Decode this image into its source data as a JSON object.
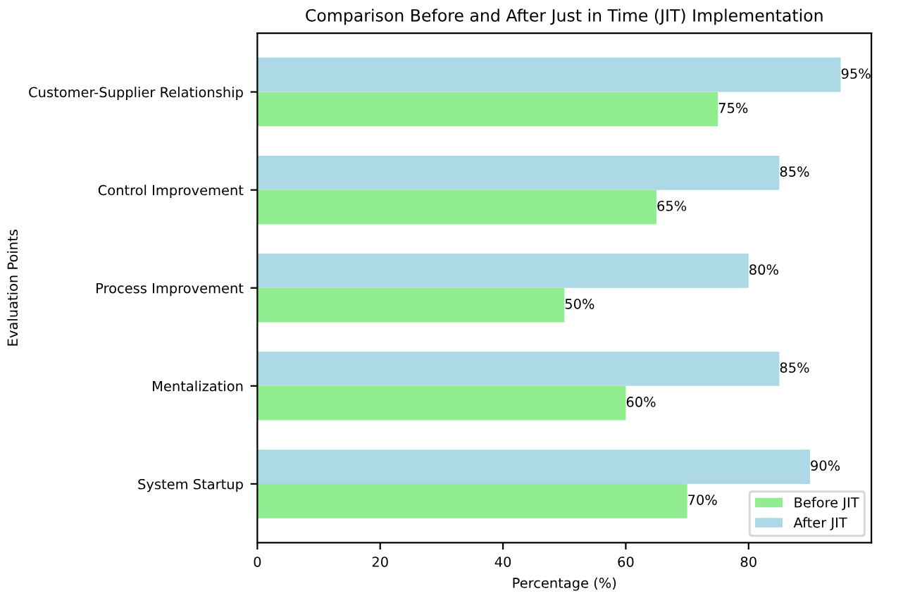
{
  "chart_data": {
    "type": "bar",
    "orientation": "horizontal",
    "title": "Comparison Before and After Just in Time (JIT) Implementation",
    "xlabel": "Percentage (%)",
    "ylabel": "Evaluation Points",
    "categories": [
      "Customer-Supplier Relationship",
      "Control Improvement",
      "Process Improvement",
      "Mentalization",
      "System Startup"
    ],
    "series": [
      {
        "name": "Before JIT",
        "color": "#90ee90",
        "values": [
          75,
          65,
          50,
          60,
          70
        ],
        "value_labels": [
          "75%",
          "65%",
          "50%",
          "60%",
          "70%"
        ]
      },
      {
        "name": "After JIT",
        "color": "#add8e6",
        "values": [
          95,
          85,
          80,
          85,
          90
        ],
        "value_labels": [
          "95%",
          "85%",
          "80%",
          "85%",
          "90%"
        ]
      }
    ],
    "xlim": [
      0,
      100
    ],
    "xticks": [
      0,
      20,
      40,
      60,
      80
    ],
    "legend": "lower right",
    "grid": false
  }
}
